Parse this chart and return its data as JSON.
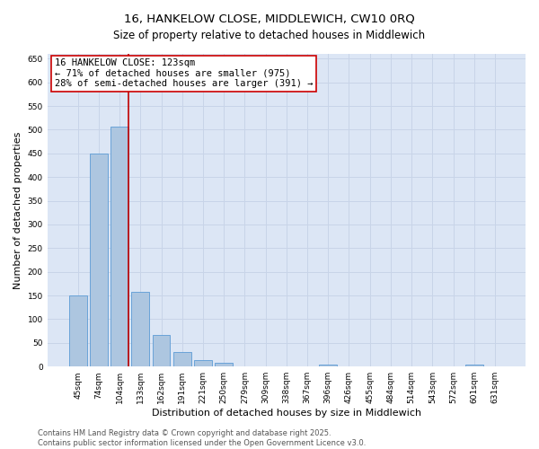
{
  "title_line1": "16, HANKELOW CLOSE, MIDDLEWICH, CW10 0RQ",
  "title_line2": "Size of property relative to detached houses in Middlewich",
  "xlabel": "Distribution of detached houses by size in Middlewich",
  "ylabel": "Number of detached properties",
  "categories": [
    "45sqm",
    "74sqm",
    "104sqm",
    "133sqm",
    "162sqm",
    "191sqm",
    "221sqm",
    "250sqm",
    "279sqm",
    "309sqm",
    "338sqm",
    "367sqm",
    "396sqm",
    "426sqm",
    "455sqm",
    "484sqm",
    "514sqm",
    "543sqm",
    "572sqm",
    "601sqm",
    "631sqm"
  ],
  "values": [
    150,
    450,
    507,
    158,
    67,
    30,
    13,
    8,
    0,
    0,
    0,
    0,
    5,
    0,
    0,
    0,
    0,
    0,
    0,
    5,
    0
  ],
  "bar_color": "#adc6e0",
  "bar_edge_color": "#5b9bd5",
  "grid_color": "#c8d4e8",
  "background_color": "#dce6f5",
  "vline_color": "#c00000",
  "annotation_text_line1": "16 HANKELOW CLOSE: 123sqm",
  "annotation_text_line2": "← 71% of detached houses are smaller (975)",
  "annotation_text_line3": "28% of semi-detached houses are larger (391) →",
  "annotation_box_color": "white",
  "annotation_box_edge": "#cc0000",
  "ylim": [
    0,
    660
  ],
  "yticks": [
    0,
    50,
    100,
    150,
    200,
    250,
    300,
    350,
    400,
    450,
    500,
    550,
    600,
    650
  ],
  "footer_line1": "Contains HM Land Registry data © Crown copyright and database right 2025.",
  "footer_line2": "Contains public sector information licensed under the Open Government Licence v3.0.",
  "title_fontsize": 9.5,
  "subtitle_fontsize": 8.5,
  "tick_fontsize": 6.5,
  "label_fontsize": 8,
  "annotation_fontsize": 7.5,
  "footer_fontsize": 6
}
